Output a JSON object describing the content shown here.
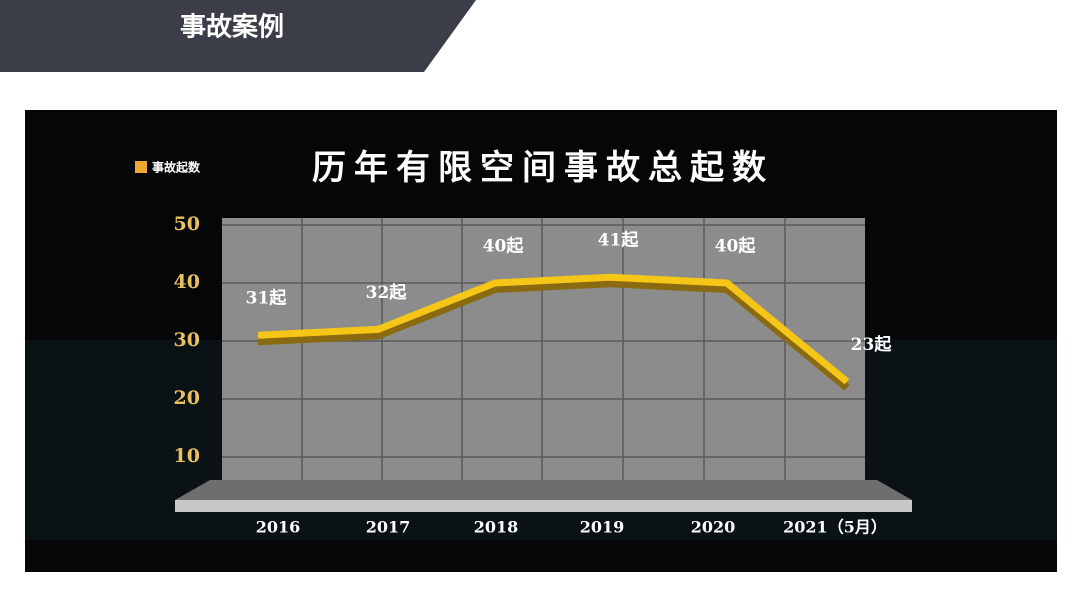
{
  "header": {
    "title": "事故案例"
  },
  "chart_data": {
    "type": "line",
    "title": "历年有限空间事故总起数",
    "categories": [
      "2016",
      "2017",
      "2018",
      "2019",
      "2020",
      "2021（5月）"
    ],
    "series": [
      {
        "name": "事故起数",
        "color": "#f5c518",
        "values": [
          31,
          32,
          40,
          41,
          40,
          23
        ],
        "value_labels": [
          "31起",
          "32起",
          "40起",
          "41起",
          "40起",
          "23起"
        ]
      }
    ],
    "ylim": [
      0,
      50
    ],
    "yticks": [
      10,
      20,
      30,
      40,
      50
    ],
    "grid": true
  }
}
